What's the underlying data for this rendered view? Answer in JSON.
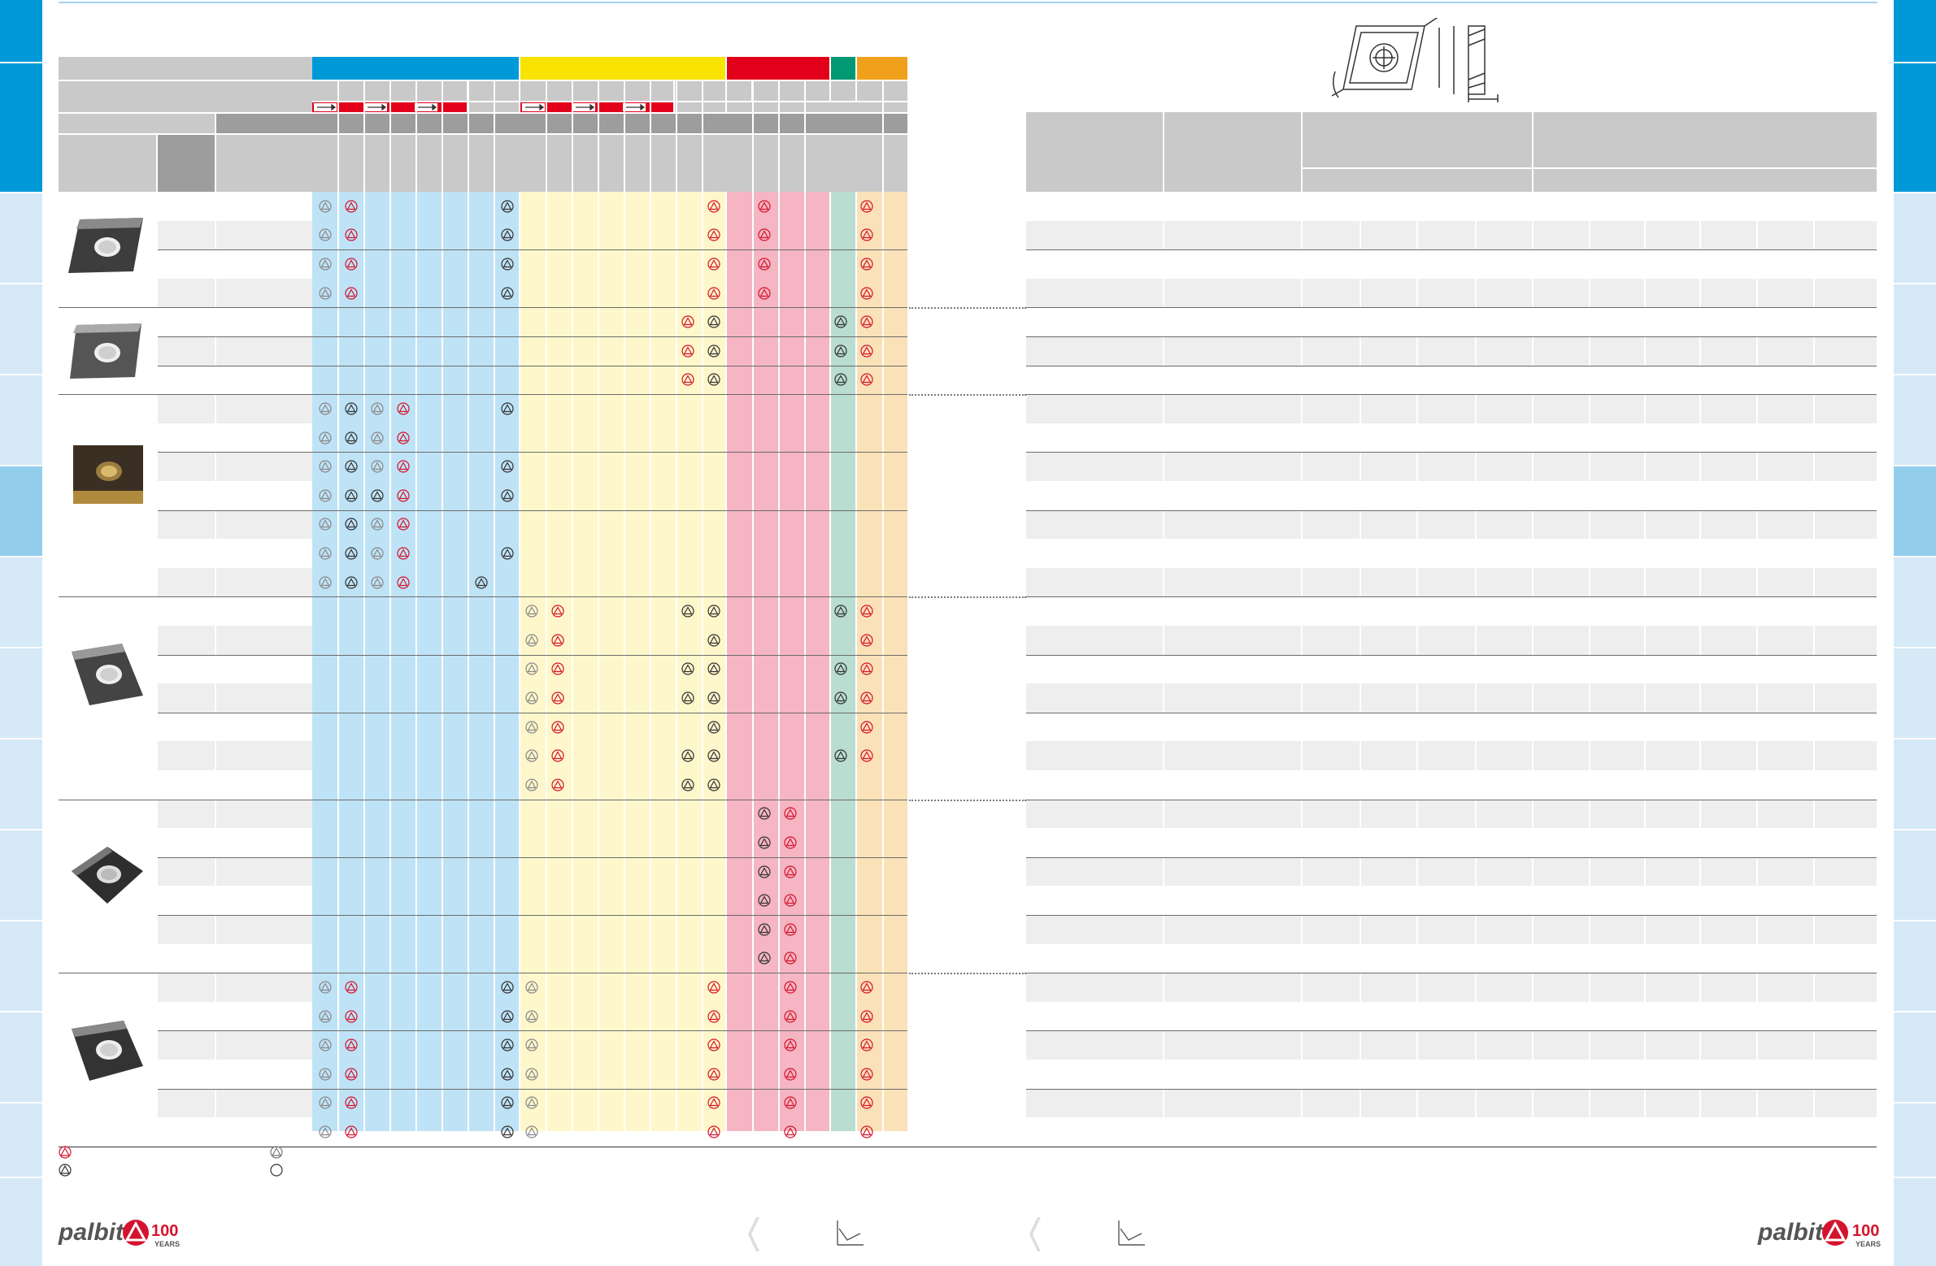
{
  "brand": {
    "name": "palbit",
    "anniversary_number": "100",
    "anniversary_label": "YEARS",
    "accent": "#d4142e"
  },
  "colors": {
    "blue": "#0099d8",
    "yellow": "#f9e300",
    "red": "#e2001a",
    "green": "#009973",
    "orange": "#f0a11b",
    "blue_light": "#bfe3f6",
    "yellow_light": "#fef7cb",
    "red_light": "#f5b5c2",
    "green_light": "#b9ddd1",
    "orange_light": "#fbe1b8"
  },
  "icons": [
    "insert-geometry-drawing-icon",
    "grade-triangle-icon",
    "arrow-right-icon",
    "page-nav-chevron-icon",
    "cutting-data-graph-icon",
    "empty-circle-icon"
  ]
}
